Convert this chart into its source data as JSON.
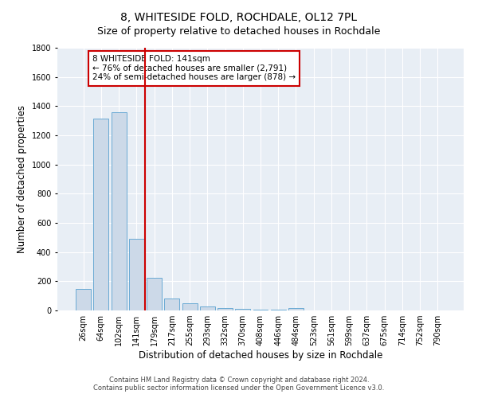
{
  "title": "8, WHITESIDE FOLD, ROCHDALE, OL12 7PL",
  "subtitle": "Size of property relative to detached houses in Rochdale",
  "xlabel": "Distribution of detached houses by size in Rochdale",
  "ylabel": "Number of detached properties",
  "categories": [
    "26sqm",
    "64sqm",
    "102sqm",
    "141sqm",
    "179sqm",
    "217sqm",
    "255sqm",
    "293sqm",
    "332sqm",
    "370sqm",
    "408sqm",
    "446sqm",
    "484sqm",
    "523sqm",
    "561sqm",
    "599sqm",
    "637sqm",
    "675sqm",
    "714sqm",
    "752sqm",
    "790sqm"
  ],
  "values": [
    145,
    1315,
    1360,
    490,
    225,
    80,
    48,
    28,
    18,
    10,
    8,
    5,
    18,
    0,
    0,
    0,
    0,
    0,
    0,
    0,
    0
  ],
  "bar_color": "#ccd9e8",
  "bar_edge_color": "#6aaad4",
  "red_line_x": 3.5,
  "red_line_color": "#cc0000",
  "annotation_text": "8 WHITESIDE FOLD: 141sqm\n← 76% of detached houses are smaller (2,791)\n24% of semi-detached houses are larger (878) →",
  "annotation_box_color": "#ffffff",
  "annotation_box_edge_color": "#cc0000",
  "ylim": [
    0,
    1800
  ],
  "yticks": [
    0,
    200,
    400,
    600,
    800,
    1000,
    1200,
    1400,
    1600,
    1800
  ],
  "footer_line1": "Contains HM Land Registry data © Crown copyright and database right 2024.",
  "footer_line2": "Contains public sector information licensed under the Open Government Licence v3.0.",
  "plot_bg_color": "#e8eef5",
  "title_fontsize": 10,
  "subtitle_fontsize": 9,
  "axis_label_fontsize": 8.5,
  "tick_fontsize": 7,
  "annotation_fontsize": 7.5,
  "footer_fontsize": 6
}
